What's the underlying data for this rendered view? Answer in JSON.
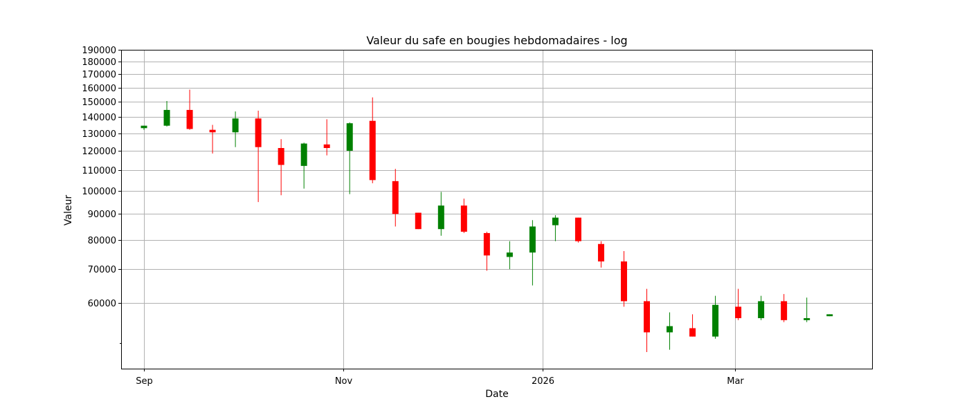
{
  "chart_data": {
    "type": "candlestick",
    "title": "Valeur du safe en bougies hebdomadaires - log",
    "xlabel": "Date",
    "ylabel": "Valeur",
    "yscale": "log",
    "ylim": [
      44500,
      190000
    ],
    "grid": true,
    "x_ticks": [
      {
        "label": "Sep",
        "date": "2025-09-01"
      },
      {
        "label": "Nov",
        "date": "2025-11-01"
      },
      {
        "label": "2026",
        "date": "2026-01-01"
      },
      {
        "label": "Mar",
        "date": "2026-03-01"
      }
    ],
    "y_ticks": [
      60000,
      70000,
      80000,
      90000,
      100000,
      110000,
      120000,
      130000,
      140000,
      150000,
      160000,
      170000,
      180000,
      190000
    ],
    "y_tick_labels": [
      "60000",
      "70000",
      "80000",
      "90000",
      "100000",
      "110000",
      "120000",
      "130000",
      "140000",
      "150000",
      "160000",
      "170000",
      "180000",
      "190000"
    ],
    "candles": [
      {
        "date": "2025-09-01",
        "open": 133000,
        "high": 134500,
        "low": 132000,
        "close": 134500
      },
      {
        "date": "2025-09-08",
        "open": 134500,
        "high": 150500,
        "low": 134000,
        "close": 144500
      },
      {
        "date": "2025-09-15",
        "open": 144500,
        "high": 158500,
        "low": 132000,
        "close": 132500
      },
      {
        "date": "2025-09-22",
        "open": 132000,
        "high": 135000,
        "low": 118500,
        "close": 130500
      },
      {
        "date": "2025-09-29",
        "open": 130500,
        "high": 143500,
        "low": 122000,
        "close": 139000
      },
      {
        "date": "2025-10-06",
        "open": 139000,
        "high": 144000,
        "low": 95000,
        "close": 122000
      },
      {
        "date": "2025-10-13",
        "open": 121500,
        "high": 126500,
        "low": 98000,
        "close": 112500
      },
      {
        "date": "2025-10-20",
        "open": 112000,
        "high": 124500,
        "low": 101000,
        "close": 124000
      },
      {
        "date": "2025-10-27",
        "open": 123500,
        "high": 138500,
        "low": 117500,
        "close": 121500
      },
      {
        "date": "2025-11-03",
        "open": 120000,
        "high": 136500,
        "low": 98500,
        "close": 136000
      },
      {
        "date": "2025-11-10",
        "open": 137500,
        "high": 153000,
        "low": 103500,
        "close": 105000
      },
      {
        "date": "2025-11-17",
        "open": 104500,
        "high": 110500,
        "low": 85000,
        "close": 90000
      },
      {
        "date": "2025-11-24",
        "open": 90500,
        "high": 90500,
        "low": 84000,
        "close": 84000
      },
      {
        "date": "2025-12-01",
        "open": 84000,
        "high": 99500,
        "low": 81500,
        "close": 93500
      },
      {
        "date": "2025-12-08",
        "open": 93500,
        "high": 96500,
        "low": 82500,
        "close": 83000
      },
      {
        "date": "2025-12-15",
        "open": 82500,
        "high": 83000,
        "low": 69500,
        "close": 74500
      },
      {
        "date": "2025-12-22",
        "open": 74000,
        "high": 79500,
        "low": 70000,
        "close": 75500
      },
      {
        "date": "2025-12-29",
        "open": 75500,
        "high": 87500,
        "low": 65000,
        "close": 85000
      },
      {
        "date": "2026-01-05",
        "open": 85500,
        "high": 89500,
        "low": 79500,
        "close": 88500
      },
      {
        "date": "2026-01-12",
        "open": 88500,
        "high": 88500,
        "low": 79000,
        "close": 79500
      },
      {
        "date": "2026-01-19",
        "open": 78500,
        "high": 79500,
        "low": 70500,
        "close": 72500
      },
      {
        "date": "2026-01-26",
        "open": 72500,
        "high": 76000,
        "low": 59000,
        "close": 60500
      },
      {
        "date": "2026-02-02",
        "open": 60500,
        "high": 64000,
        "low": 48000,
        "close": 52500
      },
      {
        "date": "2026-02-09",
        "open": 52500,
        "high": 57500,
        "low": 48500,
        "close": 54000
      },
      {
        "date": "2026-02-16",
        "open": 53500,
        "high": 57000,
        "low": 51500,
        "close": 51500
      },
      {
        "date": "2026-02-23",
        "open": 51500,
        "high": 62000,
        "low": 51000,
        "close": 59500
      },
      {
        "date": "2026-03-02",
        "open": 59000,
        "high": 64000,
        "low": 55500,
        "close": 56000
      },
      {
        "date": "2026-03-09",
        "open": 56000,
        "high": 62000,
        "low": 55500,
        "close": 60500
      },
      {
        "date": "2026-03-16",
        "open": 60500,
        "high": 62500,
        "low": 55000,
        "close": 55500
      },
      {
        "date": "2026-03-23",
        "open": 55500,
        "high": 61500,
        "low": 55000,
        "close": 56000
      },
      {
        "date": "2026-03-30",
        "open": 56500,
        "high": 57000,
        "low": 56500,
        "close": 57000
      }
    ],
    "colors": {
      "up": "#008000",
      "down": "#ff0000",
      "grid": "#b0b0b0",
      "axes": "#000000"
    }
  }
}
